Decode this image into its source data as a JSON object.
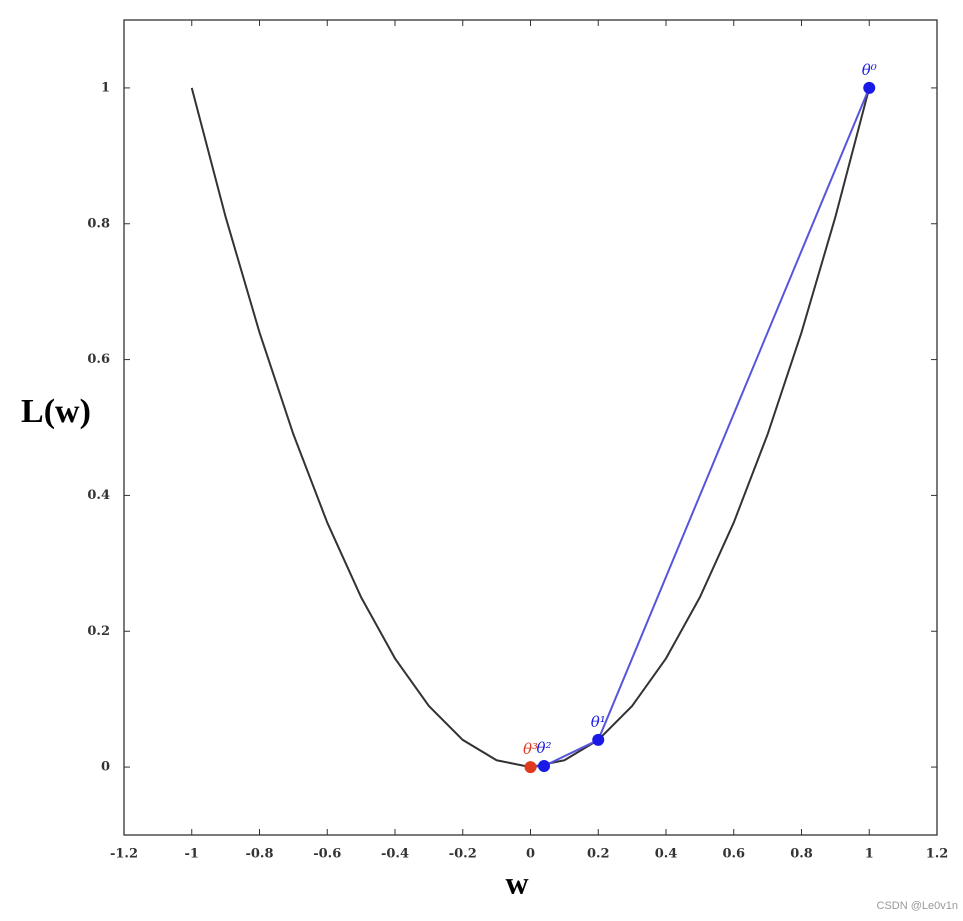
{
  "chart_data": {
    "type": "line",
    "xlabel": "w",
    "ylabel": "L(w)",
    "watermark": "CSDN @Le0v1n",
    "xlim": [
      -1.2,
      1.2
    ],
    "ylim": [
      -0.1,
      1.1
    ],
    "xticks": [
      -1.2,
      -1,
      -0.8,
      -0.6,
      -0.4,
      -0.2,
      0,
      0.2,
      0.4,
      0.6,
      0.8,
      1,
      1.2
    ],
    "yticks": [
      0,
      0.2,
      0.4,
      0.6,
      0.8,
      1
    ],
    "series": [
      {
        "color": "#333333",
        "x": [
          -1,
          -0.9,
          -0.8,
          -0.7,
          -0.6,
          -0.5,
          -0.4,
          -0.3,
          -0.2,
          -0.1,
          0,
          0.1,
          0.2,
          0.3,
          0.4,
          0.5,
          0.6,
          0.7,
          0.8,
          0.9,
          1
        ],
        "values": [
          1,
          0.81,
          0.64,
          0.49,
          0.36,
          0.25,
          0.16,
          0.09,
          0.04,
          0.01,
          0,
          0.01,
          0.04,
          0.09,
          0.16,
          0.25,
          0.36,
          0.49,
          0.64,
          0.81,
          1
        ]
      },
      {
        "color": "#5555dd",
        "markers": true,
        "x": [
          1,
          0.2,
          0.04,
          0
        ],
        "values": [
          1,
          0.04,
          0.0016,
          0
        ],
        "point_colors": [
          "#1a1ae6",
          "#1a1ae6",
          "#1a1ae6",
          "#e03a1e"
        ],
        "point_labels": [
          "θ⁰",
          "θ¹",
          "θ²",
          "θ³"
        ]
      }
    ]
  }
}
